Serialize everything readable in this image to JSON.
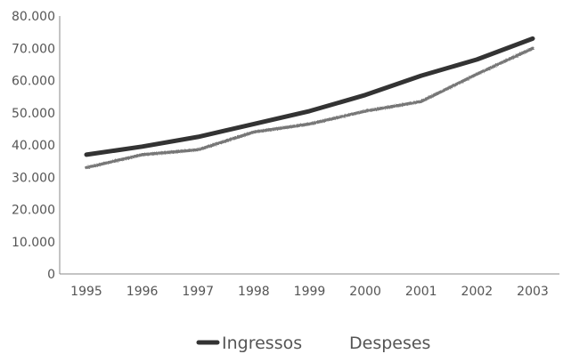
{
  "chart_data": {
    "type": "line",
    "title": "",
    "xlabel": "",
    "ylabel": "",
    "x": [
      "1995",
      "1996",
      "1997",
      "1998",
      "1999",
      "2000",
      "2001",
      "2002",
      "2003"
    ],
    "ylim": [
      0,
      80000
    ],
    "yticks": [
      "0",
      "10.000",
      "20.000",
      "30.000",
      "40.000",
      "50.000",
      "60.000",
      "70.000",
      "80.000"
    ],
    "grid": false,
    "legend_position": "bottom",
    "series": [
      {
        "name": "Ingressos",
        "color": "#333333",
        "style": "solid",
        "values": [
          37000,
          39500,
          42500,
          46500,
          50500,
          55500,
          61500,
          66500,
          73000
        ]
      },
      {
        "name": "Despeses",
        "color": "#777777",
        "style": "textured",
        "values": [
          33000,
          37000,
          38500,
          44000,
          46500,
          50500,
          53500,
          62000,
          70000
        ]
      }
    ]
  }
}
